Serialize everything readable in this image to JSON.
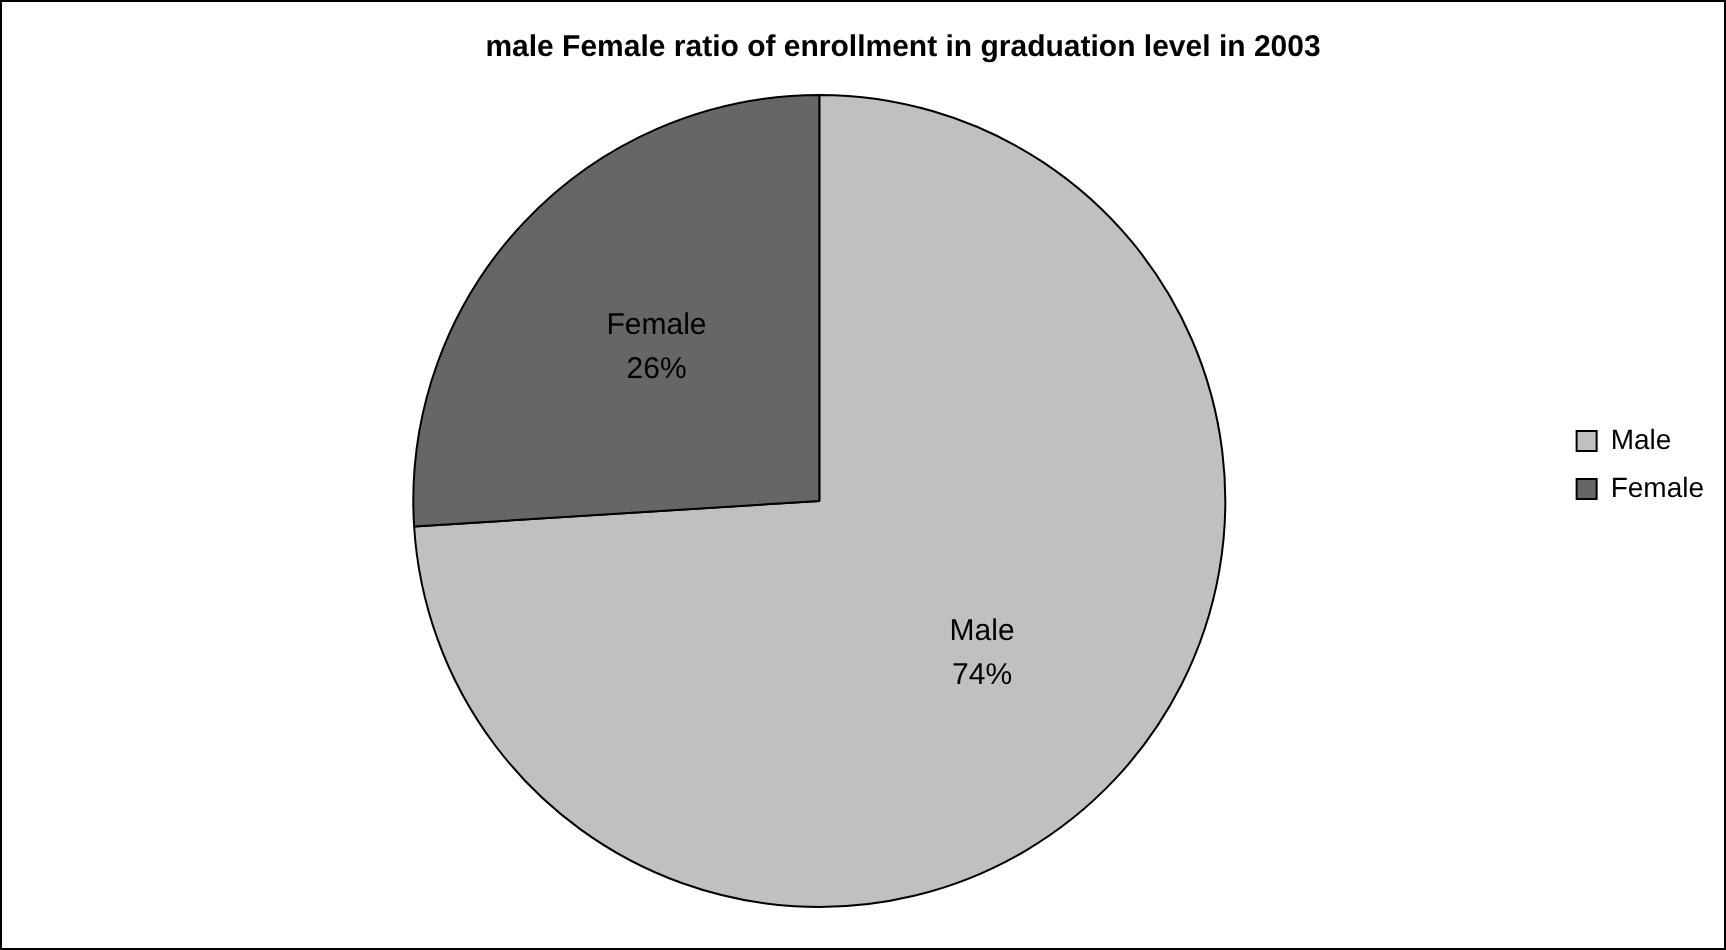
{
  "chart_data": {
    "type": "pie",
    "title": "male Female ratio of enrollment in graduation level in 2003",
    "categories": [
      "Male",
      "Female"
    ],
    "values": [
      74,
      26
    ],
    "value_labels": [
      "74%",
      "26%"
    ],
    "colors": [
      "#c0c0c0",
      "#666666"
    ],
    "legend": "right"
  }
}
